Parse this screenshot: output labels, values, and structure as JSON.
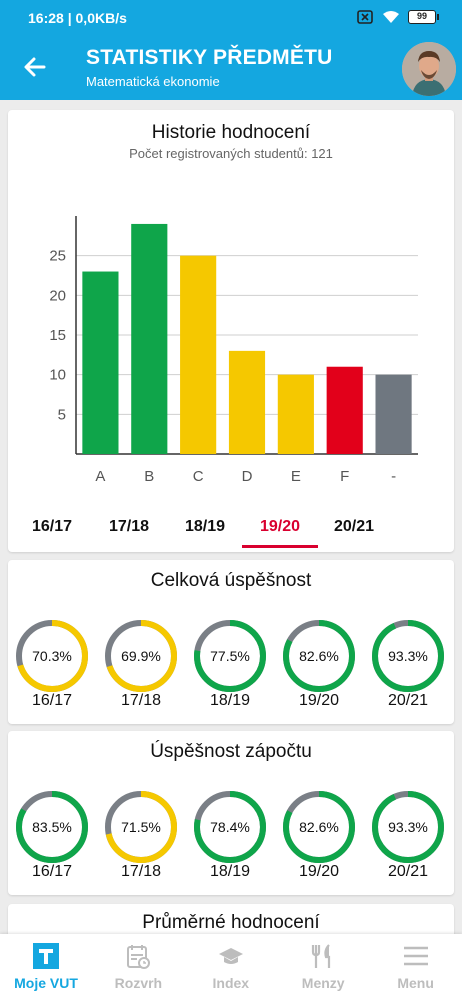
{
  "status": {
    "time": "16:28",
    "speed": "0,0KB/s",
    "battery": "99"
  },
  "header": {
    "title": "STATISTIKY PŘEDMĚTU",
    "subtitle": "Matematická ekonomie"
  },
  "history": {
    "title": "Historie hodnocení",
    "subtitle": "Počet registrovaných studentů: 121",
    "years": [
      "16/17",
      "17/18",
      "18/19",
      "19/20",
      "20/21"
    ],
    "active_year": "19/20"
  },
  "chart_data": {
    "type": "bar",
    "categories": [
      "A",
      "B",
      "C",
      "D",
      "E",
      "F",
      "-"
    ],
    "values": [
      23,
      29,
      25,
      13,
      10,
      11,
      10
    ],
    "bar_colors": [
      "#0fa54a",
      "#0fa54a",
      "#f5c800",
      "#f5c800",
      "#f5c800",
      "#e2001a",
      "#6f7780"
    ],
    "yticks": [
      5,
      10,
      15,
      20,
      25
    ],
    "ylim": [
      0,
      30
    ],
    "grid": true
  },
  "overall": {
    "title": "Celková úspěšnost",
    "items": [
      {
        "year": "16/17",
        "label": "70.3%",
        "value": 70.3,
        "color": "#f5c800"
      },
      {
        "year": "17/18",
        "label": "69.9%",
        "value": 69.9,
        "color": "#f5c800"
      },
      {
        "year": "18/19",
        "label": "77.5%",
        "value": 77.5,
        "color": "#0fa54a"
      },
      {
        "year": "19/20",
        "label": "82.6%",
        "value": 82.6,
        "color": "#0fa54a"
      },
      {
        "year": "20/21",
        "label": "93.3%",
        "value": 93.3,
        "color": "#0fa54a"
      }
    ]
  },
  "credit": {
    "title": "Úspěšnost zápočtu",
    "items": [
      {
        "year": "16/17",
        "label": "83.5%",
        "value": 83.5,
        "color": "#0fa54a"
      },
      {
        "year": "17/18",
        "label": "71.5%",
        "value": 71.5,
        "color": "#f5c800"
      },
      {
        "year": "18/19",
        "label": "78.4%",
        "value": 78.4,
        "color": "#0fa54a"
      },
      {
        "year": "19/20",
        "label": "82.6%",
        "value": 82.6,
        "color": "#0fa54a"
      },
      {
        "year": "20/21",
        "label": "93.3%",
        "value": 93.3,
        "color": "#0fa54a"
      }
    ]
  },
  "average": {
    "title": "Průměrné hodnocení"
  },
  "nav": {
    "items": [
      {
        "label": "Moje VUT",
        "icon": "vut-logo-icon"
      },
      {
        "label": "Rozvrh",
        "icon": "calendar-icon"
      },
      {
        "label": "Index",
        "icon": "graduation-cap-icon"
      },
      {
        "label": "Menzy",
        "icon": "cutlery-icon"
      },
      {
        "label": "Menu",
        "icon": "hamburger-icon"
      }
    ]
  },
  "colors": {
    "brand": "#14a7e0",
    "accent_red": "#d9002f",
    "ring_track": "#7a7f86"
  }
}
